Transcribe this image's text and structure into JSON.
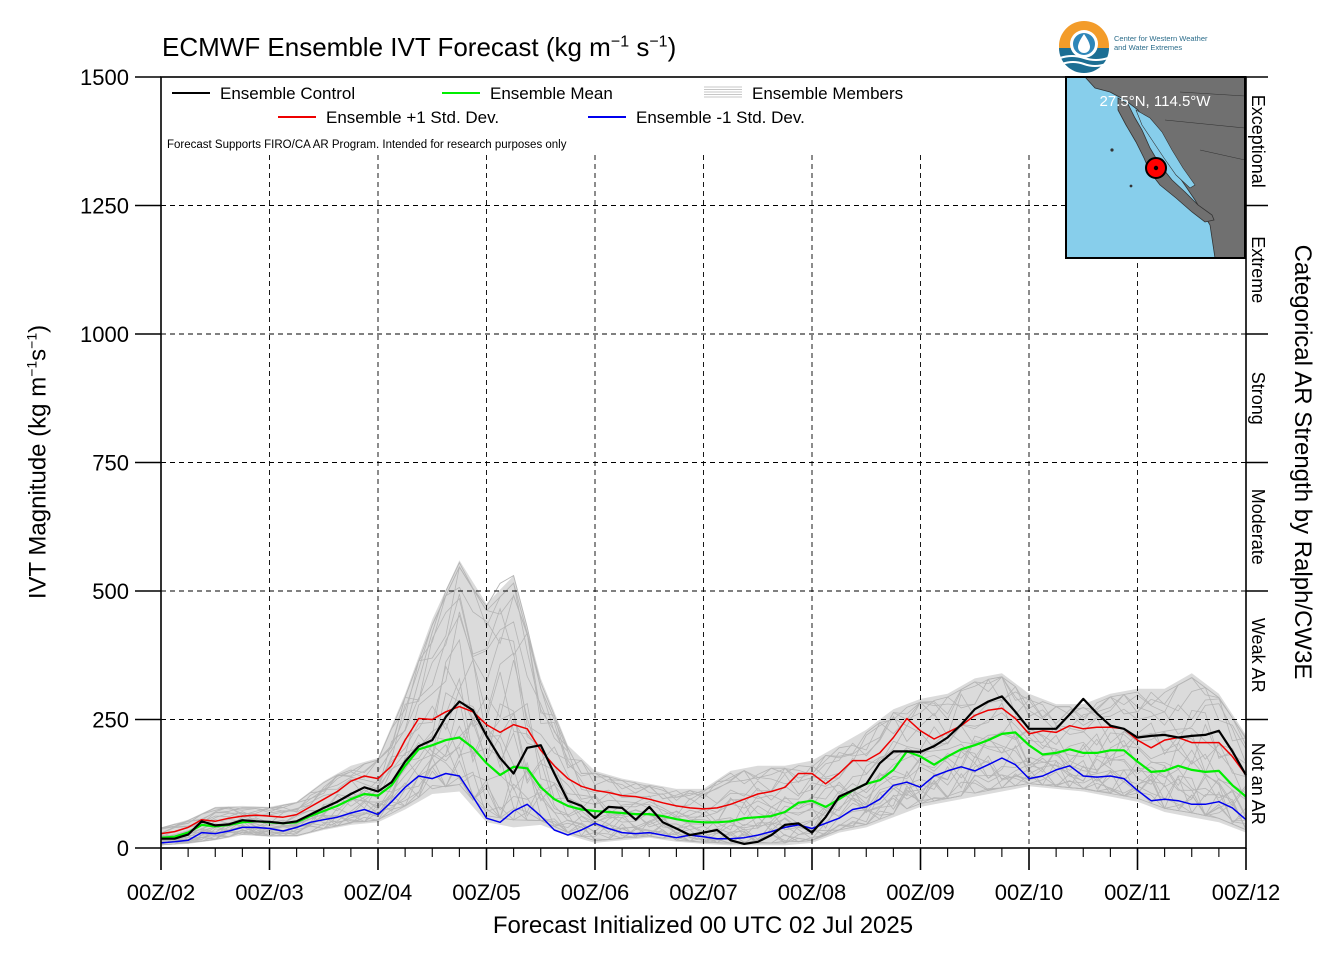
{
  "title_main": "ECMWF Ensemble IVT Forecast (kg m",
  "title_exp1": "−1",
  "title_mid": " s",
  "title_exp2": "−1",
  "title_end": ")",
  "ylabel_main": "IVT Magnitude (kg m",
  "ylabel_exp1": "−1",
  "ylabel_mid": "s",
  "ylabel_exp2": "−1",
  "ylabel_end": ")",
  "right_label": "Categorical AR Strength by Ralph/CW3E",
  "xlabel": "Forecast Initialized 00 UTC 02 Jul 2025",
  "disclaimer": "Forecast Supports FIRO/CA AR Program. Intended for research purposes only",
  "logo_text": [
    "Center for Western Weather",
    "and Water Extremes"
  ],
  "inset": {
    "location": "27.5°N, 114.5°W"
  },
  "categories": [
    "Not an AR",
    "Weak AR",
    "Moderate",
    "Strong",
    "Extreme",
    "Exceptional"
  ],
  "colors": {
    "control": "#000000",
    "mean": "#00ee00",
    "plus_sd": "#ee0000",
    "minus_sd": "#0000ee",
    "members": "#b5b5b5",
    "ocean": "#87ceeb",
    "land": "#707070"
  },
  "chart_data": {
    "type": "line",
    "title": "ECMWF Ensemble IVT Forecast (kg m−1 s−1)",
    "xlabel": "Forecast Initialized 00 UTC 02 Jul 2025",
    "ylabel": "IVT Magnitude (kg m−1s−1)",
    "ylim": [
      0,
      1500
    ],
    "yticks": [
      0,
      250,
      500,
      750,
      1000,
      1250,
      1500
    ],
    "xlim": [
      0,
      240
    ],
    "x_tick_hours": [
      0,
      24,
      48,
      72,
      96,
      120,
      144,
      168,
      192,
      216,
      240
    ],
    "x_tick_labels": [
      "00Z/02",
      "00Z/03",
      "00Z/04",
      "00Z/05",
      "00Z/06",
      "00Z/07",
      "00Z/08",
      "00Z/09",
      "00Z/10",
      "00Z/11",
      "00Z/12"
    ],
    "x_unit": "forecast hour",
    "grid": true,
    "legend_position": "top-left",
    "series": [
      {
        "name": "Ensemble Control",
        "color": "#000000",
        "x": [
          0,
          3,
          6,
          9,
          12,
          15,
          18,
          21,
          24,
          27,
          30,
          33,
          36,
          39,
          42,
          45,
          48,
          51,
          54,
          57,
          60,
          63,
          66,
          69,
          72,
          75,
          78,
          81,
          84,
          87,
          90,
          93,
          96,
          99,
          102,
          105,
          108,
          111,
          114,
          117,
          120,
          123,
          126,
          129,
          132,
          135,
          138,
          141,
          144,
          147,
          150,
          153,
          156,
          159,
          162,
          165,
          168,
          171,
          174,
          177,
          180,
          183,
          186,
          189,
          192,
          195,
          198,
          201,
          204,
          207,
          210,
          213,
          216,
          219,
          222,
          225,
          228,
          231,
          234,
          237,
          240
        ],
        "values": [
          18,
          18,
          26,
          52,
          44,
          46,
          54,
          52,
          51,
          48,
          52,
          65,
          78,
          90,
          105,
          118,
          110,
          128,
          168,
          198,
          210,
          255,
          285,
          268,
          218,
          175,
          145,
          195,
          200,
          145,
          92,
          82,
          58,
          80,
          78,
          55,
          80,
          50,
          38,
          25,
          30,
          35,
          15,
          8,
          12,
          25,
          45,
          48,
          30,
          60,
          100,
          112,
          125,
          165,
          188,
          188,
          187,
          198,
          215,
          240,
          270,
          285,
          295,
          265,
          232,
          232,
          232,
          260,
          290,
          262,
          238,
          232,
          215,
          218,
          220,
          215,
          218,
          220,
          228,
          188,
          142
        ]
      },
      {
        "name": "Ensemble +1 Std. Dev.",
        "color": "#ee0000",
        "x": [
          0,
          3,
          6,
          9,
          12,
          15,
          18,
          21,
          24,
          27,
          30,
          33,
          36,
          39,
          42,
          45,
          48,
          51,
          54,
          57,
          60,
          63,
          66,
          69,
          72,
          75,
          78,
          81,
          84,
          87,
          90,
          93,
          96,
          99,
          102,
          105,
          108,
          111,
          114,
          117,
          120,
          123,
          126,
          129,
          132,
          135,
          138,
          141,
          144,
          147,
          150,
          153,
          156,
          159,
          162,
          165,
          168,
          171,
          174,
          177,
          180,
          183,
          186,
          189,
          192,
          195,
          198,
          201,
          204,
          207,
          210,
          213,
          216,
          219,
          222,
          225,
          228,
          231,
          234,
          237,
          240
        ],
        "values": [
          28,
          32,
          40,
          55,
          52,
          58,
          62,
          64,
          62,
          60,
          65,
          80,
          95,
          110,
          130,
          140,
          135,
          160,
          210,
          252,
          250,
          265,
          275,
          265,
          240,
          225,
          240,
          232,
          190,
          160,
          135,
          120,
          112,
          108,
          102,
          100,
          95,
          88,
          82,
          78,
          76,
          78,
          85,
          95,
          105,
          110,
          118,
          145,
          145,
          125,
          145,
          170,
          170,
          185,
          215,
          252,
          228,
          212,
          225,
          238,
          258,
          268,
          272,
          252,
          222,
          228,
          225,
          238,
          232,
          235,
          235,
          232,
          210,
          195,
          210,
          215,
          205,
          205,
          205,
          178,
          142
        ]
      },
      {
        "name": "Ensemble Mean",
        "color": "#00ee00",
        "x": [
          0,
          3,
          6,
          9,
          12,
          15,
          18,
          21,
          24,
          27,
          30,
          33,
          36,
          39,
          42,
          45,
          48,
          51,
          54,
          57,
          60,
          63,
          66,
          69,
          72,
          75,
          78,
          81,
          84,
          87,
          90,
          93,
          96,
          99,
          102,
          105,
          108,
          111,
          114,
          117,
          120,
          123,
          126,
          129,
          132,
          135,
          138,
          141,
          144,
          147,
          150,
          153,
          156,
          159,
          162,
          165,
          168,
          171,
          174,
          177,
          180,
          183,
          186,
          189,
          192,
          195,
          198,
          201,
          204,
          207,
          210,
          213,
          216,
          219,
          222,
          225,
          228,
          231,
          234,
          237,
          240
        ],
        "values": [
          20,
          22,
          30,
          45,
          42,
          45,
          50,
          52,
          50,
          48,
          50,
          62,
          72,
          82,
          95,
          105,
          102,
          122,
          160,
          192,
          200,
          210,
          215,
          195,
          165,
          142,
          158,
          155,
          118,
          95,
          82,
          75,
          72,
          70,
          68,
          66,
          66,
          62,
          56,
          52,
          50,
          50,
          52,
          58,
          60,
          62,
          70,
          88,
          92,
          80,
          95,
          112,
          125,
          132,
          152,
          188,
          178,
          162,
          178,
          192,
          200,
          210,
          222,
          225,
          200,
          182,
          185,
          192,
          185,
          185,
          190,
          190,
          168,
          148,
          150,
          160,
          152,
          148,
          150,
          122,
          100
        ]
      },
      {
        "name": "Ensemble -1 Std. Dev.",
        "color": "#0000ee",
        "x": [
          0,
          3,
          6,
          9,
          12,
          15,
          18,
          21,
          24,
          27,
          30,
          33,
          36,
          39,
          42,
          45,
          48,
          51,
          54,
          57,
          60,
          63,
          66,
          69,
          72,
          75,
          78,
          81,
          84,
          87,
          90,
          93,
          96,
          99,
          102,
          105,
          108,
          111,
          114,
          117,
          120,
          123,
          126,
          129,
          132,
          135,
          138,
          141,
          144,
          147,
          150,
          153,
          156,
          159,
          162,
          165,
          168,
          171,
          174,
          177,
          180,
          183,
          186,
          189,
          192,
          195,
          198,
          201,
          204,
          207,
          210,
          213,
          216,
          219,
          222,
          225,
          228,
          231,
          234,
          237,
          240
        ],
        "values": [
          10,
          12,
          15,
          30,
          28,
          33,
          40,
          40,
          38,
          33,
          40,
          50,
          55,
          60,
          68,
          75,
          65,
          90,
          118,
          140,
          135,
          145,
          140,
          100,
          58,
          50,
          72,
          85,
          62,
          35,
          25,
          35,
          48,
          38,
          30,
          28,
          30,
          25,
          20,
          25,
          22,
          18,
          18,
          20,
          25,
          32,
          40,
          45,
          38,
          48,
          58,
          75,
          80,
          95,
          122,
          128,
          118,
          140,
          150,
          158,
          150,
          162,
          175,
          162,
          135,
          140,
          152,
          160,
          140,
          138,
          140,
          135,
          112,
          92,
          95,
          92,
          85,
          85,
          90,
          78,
          55
        ]
      }
    ],
    "members_band": {
      "name": "Ensemble Members",
      "color": "#b5b5b5",
      "x": [
        0,
        6,
        12,
        18,
        24,
        30,
        36,
        42,
        48,
        54,
        60,
        66,
        72,
        78,
        84,
        90,
        96,
        102,
        108,
        114,
        120,
        126,
        132,
        138,
        144,
        150,
        156,
        162,
        168,
        174,
        180,
        186,
        192,
        198,
        204,
        210,
        216,
        222,
        228,
        234,
        240
      ],
      "min": [
        5,
        8,
        15,
        25,
        22,
        22,
        35,
        45,
        50,
        75,
        105,
        110,
        50,
        40,
        45,
        25,
        10,
        15,
        20,
        12,
        8,
        5,
        5,
        5,
        10,
        30,
        40,
        60,
        80,
        90,
        100,
        110,
        120,
        115,
        110,
        100,
        90,
        70,
        60,
        50,
        30
      ],
      "max": [
        40,
        55,
        80,
        82,
        80,
        90,
        130,
        160,
        175,
        300,
        445,
        560,
        475,
        530,
        330,
        200,
        150,
        135,
        125,
        115,
        115,
        150,
        160,
        160,
        170,
        200,
        230,
        270,
        290,
        300,
        330,
        340,
        300,
        280,
        280,
        300,
        310,
        310,
        340,
        300,
        220
      ],
      "peak_max_value": 555,
      "peak_max_hour": 66
    },
    "category_bands": [
      {
        "name": "Not an AR",
        "range": [
          0,
          250
        ]
      },
      {
        "name": "Weak AR",
        "range": [
          250,
          500
        ]
      },
      {
        "name": "Moderate",
        "range": [
          500,
          750
        ]
      },
      {
        "name": "Strong",
        "range": [
          750,
          1000
        ]
      },
      {
        "name": "Extreme",
        "range": [
          1000,
          1250
        ]
      },
      {
        "name": "Exceptional",
        "range": [
          1250,
          1500
        ]
      }
    ]
  }
}
